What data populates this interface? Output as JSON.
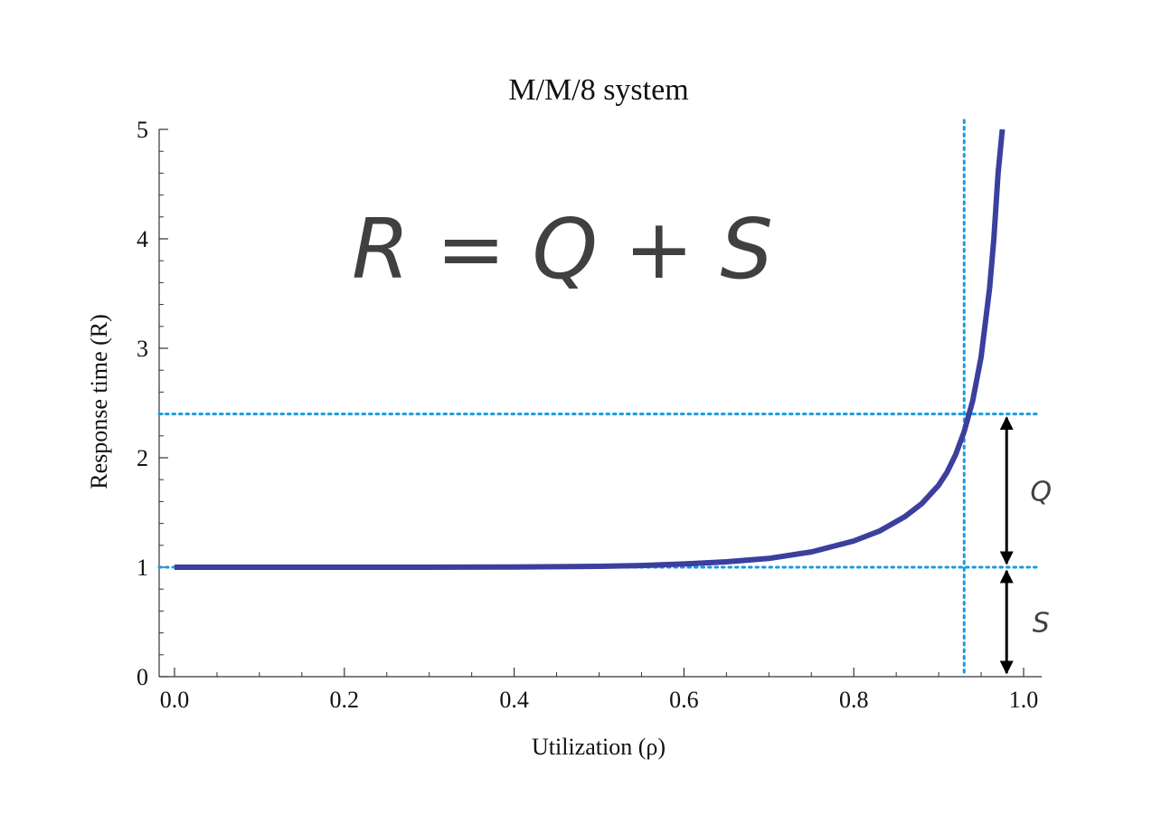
{
  "chart_data": {
    "type": "line",
    "title": "M/M/8 system",
    "xlabel": "Utilization (ρ)",
    "ylabel": "Response time (R)",
    "xlim": [
      0,
      1
    ],
    "ylim": [
      0,
      5
    ],
    "xticks": [
      "0.0",
      "0.2",
      "0.4",
      "0.6",
      "0.8",
      "1.0"
    ],
    "yticks": [
      "0",
      "1",
      "2",
      "3",
      "4",
      "5"
    ],
    "equation": "R = Q + S",
    "grid": false,
    "series": [
      {
        "color": "#3b3f9e",
        "x": [
          0.0,
          0.1,
          0.2,
          0.3,
          0.4,
          0.5,
          0.55,
          0.6,
          0.65,
          0.7,
          0.75,
          0.8,
          0.83,
          0.86,
          0.88,
          0.9,
          0.91,
          0.92,
          0.93,
          0.94,
          0.95,
          0.96,
          0.965,
          0.97,
          0.975
        ],
        "y": [
          1.0,
          1.0,
          1.0,
          1.0,
          1.002,
          1.008,
          1.016,
          1.03,
          1.05,
          1.08,
          1.14,
          1.24,
          1.33,
          1.46,
          1.58,
          1.75,
          1.87,
          2.03,
          2.24,
          2.52,
          2.92,
          3.55,
          4.0,
          4.6,
          5.0
        ]
      }
    ],
    "reference_lines": {
      "color": "#1a9be0",
      "horizontal": [
        2.4,
        1.0
      ],
      "vertical": [
        0.93
      ]
    },
    "annotations": [
      {
        "label": "Q",
        "from": 1.0,
        "to": 2.4,
        "x": 0.98
      },
      {
        "label": "S",
        "from": 0.0,
        "to": 1.0,
        "x": 0.98
      }
    ]
  }
}
